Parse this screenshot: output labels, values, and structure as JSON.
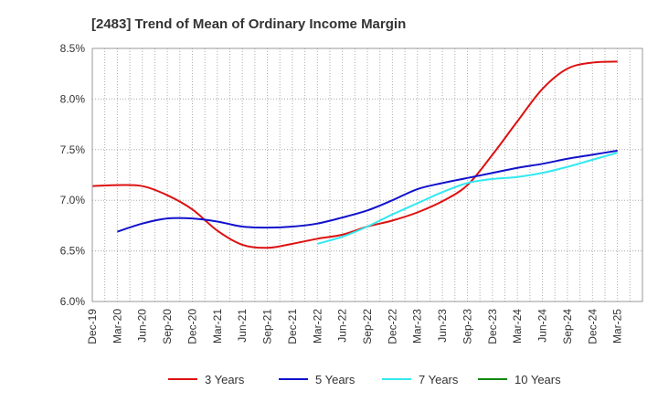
{
  "chart_data": {
    "type": "line",
    "title": "[2483]  Trend of Mean of Ordinary Income Margin",
    "xlabel": "",
    "ylabel": "",
    "ylim": [
      6.0,
      8.5
    ],
    "y_ticks": [
      {
        "value": 6.0,
        "label": "6.0%"
      },
      {
        "value": 6.5,
        "label": "6.5%"
      },
      {
        "value": 7.0,
        "label": "7.0%"
      },
      {
        "value": 7.5,
        "label": "7.5%"
      },
      {
        "value": 8.0,
        "label": "8.0%"
      },
      {
        "value": 8.5,
        "label": "8.5%"
      }
    ],
    "x_tick_labels": [
      "Dec-19",
      "Mar-20",
      "Jun-20",
      "Sep-20",
      "Dec-20",
      "Mar-21",
      "Jun-21",
      "Sep-21",
      "Dec-21",
      "Mar-22",
      "Jun-22",
      "Sep-22",
      "Dec-22",
      "Mar-23",
      "Jun-23",
      "Sep-23",
      "Dec-23",
      "Mar-24",
      "Jun-24",
      "Sep-24",
      "Dec-24",
      "Mar-25"
    ],
    "grid": true,
    "legend_position": "bottom",
    "series": [
      {
        "name": "3 Years",
        "color": "#dd1111",
        "values": [
          7.14,
          7.15,
          7.14,
          7.05,
          6.91,
          6.7,
          6.56,
          6.53,
          6.57,
          6.62,
          6.66,
          6.74,
          6.8,
          6.88,
          6.99,
          7.15,
          7.45,
          7.78,
          8.1,
          8.3,
          8.36,
          8.37,
          null
        ]
      },
      {
        "name": "5 Years",
        "color": "#1111cc",
        "values": [
          null,
          6.69,
          6.77,
          6.82,
          6.82,
          6.79,
          6.74,
          6.73,
          6.74,
          6.77,
          6.83,
          6.9,
          7.0,
          7.11,
          7.17,
          7.22,
          7.27,
          7.32,
          7.36,
          7.41,
          7.45,
          7.49,
          null
        ]
      },
      {
        "name": "7 Years",
        "color": "#33e8f0",
        "values": [
          null,
          null,
          null,
          null,
          null,
          null,
          null,
          null,
          null,
          6.57,
          6.64,
          6.74,
          6.86,
          6.97,
          7.08,
          7.17,
          7.21,
          7.23,
          7.27,
          7.33,
          7.4,
          7.47,
          null
        ]
      },
      {
        "name": "10 Years",
        "color": "#118811",
        "values": []
      }
    ]
  }
}
